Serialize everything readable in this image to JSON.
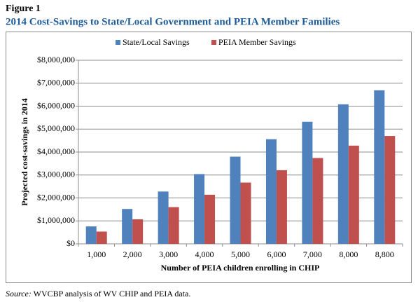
{
  "chart_data": {
    "type": "bar",
    "figure_label": "Figure 1",
    "title": "2014 Cost-Savings to State/Local Government and PEIA Member Families",
    "x_label": "Number of PEIA children enrolling in CHIP",
    "y_label": "Projected cost-savings in 2014",
    "source_label": "Source:",
    "source": "WVCBP analysis of WV CHIP and PEIA data.",
    "categories": [
      "1,000",
      "2,000",
      "3,000",
      "4,000",
      "5,000",
      "6,000",
      "7,000",
      "8,000",
      "8,800"
    ],
    "series": [
      {
        "name": "State/Local Savings",
        "color": "#4f81bd",
        "values": [
          760000,
          1520000,
          2280000,
          3040000,
          3800000,
          4560000,
          5320000,
          6080000,
          6690000
        ]
      },
      {
        "name": "PEIA Member Savings",
        "color": "#c0504d",
        "values": [
          535000,
          1070000,
          1600000,
          2140000,
          2670000,
          3210000,
          3740000,
          4280000,
          4700000
        ]
      }
    ],
    "ylim": [
      0,
      8000000
    ],
    "yticks": [
      {
        "value": 0,
        "label": "$0"
      },
      {
        "value": 1000000,
        "label": "$1,000,000"
      },
      {
        "value": 2000000,
        "label": "$2,000,000"
      },
      {
        "value": 3000000,
        "label": "$3,000,000"
      },
      {
        "value": 4000000,
        "label": "$4,000,000"
      },
      {
        "value": 5000000,
        "label": "$5,000,000"
      },
      {
        "value": 6000000,
        "label": "$6,000,000"
      },
      {
        "value": 7000000,
        "label": "$7,000,000"
      },
      {
        "value": 8000000,
        "label": "$8,000,000"
      }
    ],
    "grid": true,
    "legend": "top"
  }
}
